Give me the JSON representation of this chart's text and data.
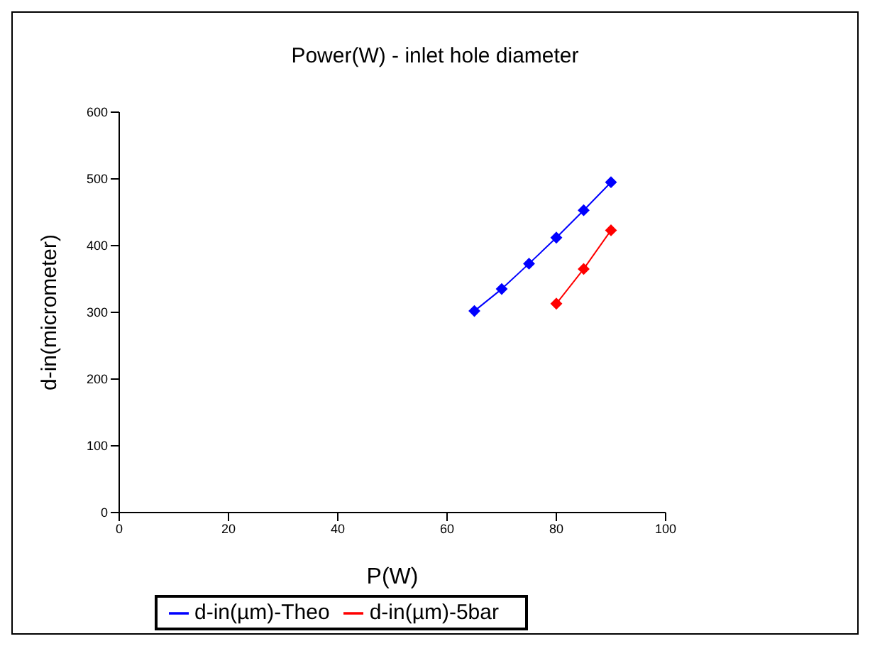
{
  "chart_data": {
    "type": "line",
    "title": "Power(W) - inlet hole diameter",
    "xlabel": "P(W)",
    "ylabel": "d-in(micrometer)",
    "series": [
      {
        "name": "d-in(µm)-Theo",
        "color": "#0000ff",
        "x": [
          65,
          70,
          75,
          80,
          85,
          90
        ],
        "values": [
          302,
          335,
          373,
          412,
          453,
          495
        ]
      },
      {
        "name": "d-in(µm)-5bar",
        "color": "#ff0000",
        "x": [
          80,
          85,
          90
        ],
        "values": [
          313,
          365,
          423
        ]
      }
    ],
    "xlim": [
      0,
      100
    ],
    "xticks": [
      0,
      20,
      40,
      60,
      80,
      100
    ],
    "ylim": [
      0,
      600
    ],
    "yticks": [
      0,
      100,
      200,
      300,
      400,
      500,
      600
    ],
    "grid": false,
    "legend": "bottom",
    "marker": "diamond",
    "line_style": "solid"
  }
}
